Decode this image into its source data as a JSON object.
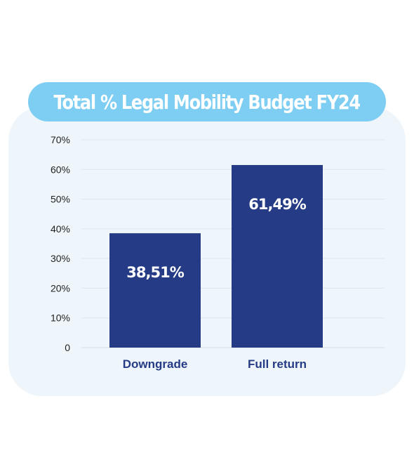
{
  "chart_data": {
    "type": "bar",
    "title": "Total % Legal Mobility Budget FY24",
    "categories": [
      "Downgrade",
      "Full return"
    ],
    "values": [
      38.51,
      61.49
    ],
    "data_labels": [
      "38,51%",
      "61,49%"
    ],
    "yticks": [
      0,
      10,
      20,
      30,
      40,
      50,
      60,
      70
    ],
    "ytick_labels": [
      "0",
      "10%",
      "20%",
      "30%",
      "40%",
      "50%",
      "60%",
      "70%"
    ],
    "ylim": [
      0,
      70
    ],
    "xlabel": "",
    "ylabel": "",
    "grid": true,
    "legend": "none",
    "colors": {
      "bar": "#253b85",
      "category_text": "#253b85",
      "title_background": "#7ecdf2",
      "card_background": "#eef6fb",
      "grid": "#dde6ec"
    }
  }
}
